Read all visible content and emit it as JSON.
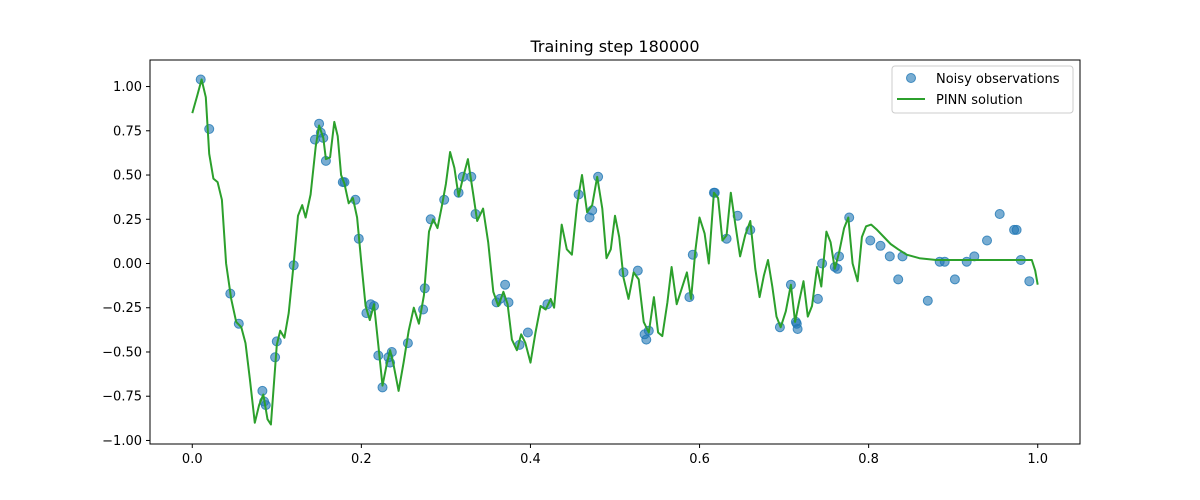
{
  "chart_data": {
    "type": "scatter",
    "title": "Training step 180000",
    "xlabel": "",
    "ylabel": "",
    "xlim": [
      -0.05,
      1.05
    ],
    "ylim": [
      -1.02,
      1.15
    ],
    "grid": false,
    "legend_position": "top-right",
    "x_ticks": [
      0.0,
      0.2,
      0.4,
      0.6,
      0.8,
      1.0
    ],
    "x_tick_labels": [
      "0.0",
      "0.2",
      "0.4",
      "0.6",
      "0.8",
      "1.0"
    ],
    "y_ticks": [
      -1.0,
      -0.75,
      -0.5,
      -0.25,
      0.0,
      0.25,
      0.5,
      0.75,
      1.0
    ],
    "y_tick_labels": [
      "−1.00",
      "−0.75",
      "−0.50",
      "−0.25",
      "0.00",
      "0.25",
      "0.50",
      "0.75",
      "1.00"
    ],
    "series": [
      {
        "name": "Noisy observations",
        "kind": "scatter",
        "color": "#1f77b4",
        "points": [
          [
            0.01,
            1.04
          ],
          [
            0.02,
            0.76
          ],
          [
            0.045,
            -0.17
          ],
          [
            0.055,
            -0.34
          ],
          [
            0.083,
            -0.72
          ],
          [
            0.085,
            -0.78
          ],
          [
            0.087,
            -0.8
          ],
          [
            0.098,
            -0.53
          ],
          [
            0.1,
            -0.44
          ],
          [
            0.12,
            -0.01
          ],
          [
            0.145,
            0.7
          ],
          [
            0.15,
            0.79
          ],
          [
            0.152,
            0.74
          ],
          [
            0.155,
            0.71
          ],
          [
            0.158,
            0.58
          ],
          [
            0.178,
            0.46
          ],
          [
            0.18,
            0.46
          ],
          [
            0.193,
            0.36
          ],
          [
            0.197,
            0.14
          ],
          [
            0.206,
            -0.28
          ],
          [
            0.211,
            -0.23
          ],
          [
            0.215,
            -0.24
          ],
          [
            0.22,
            -0.52
          ],
          [
            0.225,
            -0.7
          ],
          [
            0.232,
            -0.53
          ],
          [
            0.234,
            -0.56
          ],
          [
            0.236,
            -0.5
          ],
          [
            0.255,
            -0.45
          ],
          [
            0.273,
            -0.26
          ],
          [
            0.275,
            -0.14
          ],
          [
            0.282,
            0.25
          ],
          [
            0.298,
            0.36
          ],
          [
            0.315,
            0.4
          ],
          [
            0.32,
            0.49
          ],
          [
            0.33,
            0.49
          ],
          [
            0.335,
            0.28
          ],
          [
            0.36,
            -0.22
          ],
          [
            0.364,
            -0.2
          ],
          [
            0.37,
            -0.12
          ],
          [
            0.374,
            -0.22
          ],
          [
            0.387,
            -0.46
          ],
          [
            0.397,
            -0.39
          ],
          [
            0.42,
            -0.23
          ],
          [
            0.457,
            0.39
          ],
          [
            0.47,
            0.26
          ],
          [
            0.473,
            0.3
          ],
          [
            0.48,
            0.49
          ],
          [
            0.51,
            -0.05
          ],
          [
            0.527,
            -0.04
          ],
          [
            0.535,
            -0.4
          ],
          [
            0.537,
            -0.43
          ],
          [
            0.54,
            -0.38
          ],
          [
            0.588,
            -0.19
          ],
          [
            0.592,
            0.05
          ],
          [
            0.617,
            0.4
          ],
          [
            0.618,
            0.4
          ],
          [
            0.632,
            0.14
          ],
          [
            0.645,
            0.27
          ],
          [
            0.66,
            0.19
          ],
          [
            0.695,
            -0.36
          ],
          [
            0.708,
            -0.12
          ],
          [
            0.714,
            -0.33
          ],
          [
            0.715,
            -0.34
          ],
          [
            0.716,
            -0.37
          ],
          [
            0.74,
            -0.2
          ],
          [
            0.745,
            0.0
          ],
          [
            0.76,
            -0.02
          ],
          [
            0.763,
            -0.03
          ],
          [
            0.765,
            0.04
          ],
          [
            0.777,
            0.26
          ],
          [
            0.802,
            0.13
          ],
          [
            0.814,
            0.1
          ],
          [
            0.825,
            0.04
          ],
          [
            0.835,
            -0.09
          ],
          [
            0.84,
            0.04
          ],
          [
            0.87,
            -0.21
          ],
          [
            0.884,
            0.01
          ],
          [
            0.89,
            0.01
          ],
          [
            0.902,
            -0.09
          ],
          [
            0.916,
            0.01
          ],
          [
            0.925,
            0.04
          ],
          [
            0.94,
            0.13
          ],
          [
            0.955,
            0.28
          ],
          [
            0.972,
            0.19
          ],
          [
            0.975,
            0.19
          ],
          [
            0.98,
            0.02
          ],
          [
            0.99,
            -0.1
          ]
        ]
      },
      {
        "name": "PINN solution",
        "kind": "line",
        "color": "#2ca02c",
        "points": [
          [
            0.0,
            0.85
          ],
          [
            0.006,
            0.95
          ],
          [
            0.011,
            1.04
          ],
          [
            0.016,
            0.94
          ],
          [
            0.02,
            0.62
          ],
          [
            0.025,
            0.48
          ],
          [
            0.03,
            0.46
          ],
          [
            0.035,
            0.36
          ],
          [
            0.04,
            0.0
          ],
          [
            0.046,
            -0.2
          ],
          [
            0.052,
            -0.33
          ],
          [
            0.058,
            -0.36
          ],
          [
            0.063,
            -0.45
          ],
          [
            0.068,
            -0.65
          ],
          [
            0.074,
            -0.9
          ],
          [
            0.079,
            -0.8
          ],
          [
            0.084,
            -0.74
          ],
          [
            0.089,
            -0.88
          ],
          [
            0.093,
            -0.91
          ],
          [
            0.1,
            -0.46
          ],
          [
            0.104,
            -0.38
          ],
          [
            0.109,
            -0.42
          ],
          [
            0.114,
            -0.28
          ],
          [
            0.12,
            0.0
          ],
          [
            0.125,
            0.27
          ],
          [
            0.13,
            0.33
          ],
          [
            0.134,
            0.26
          ],
          [
            0.14,
            0.39
          ],
          [
            0.146,
            0.66
          ],
          [
            0.15,
            0.78
          ],
          [
            0.155,
            0.71
          ],
          [
            0.158,
            0.59
          ],
          [
            0.163,
            0.6
          ],
          [
            0.168,
            0.8
          ],
          [
            0.172,
            0.72
          ],
          [
            0.176,
            0.5
          ],
          [
            0.18,
            0.45
          ],
          [
            0.185,
            0.34
          ],
          [
            0.19,
            0.37
          ],
          [
            0.195,
            0.26
          ],
          [
            0.2,
            0.0
          ],
          [
            0.205,
            -0.24
          ],
          [
            0.21,
            -0.32
          ],
          [
            0.215,
            -0.23
          ],
          [
            0.22,
            -0.46
          ],
          [
            0.225,
            -0.69
          ],
          [
            0.23,
            -0.57
          ],
          [
            0.234,
            -0.49
          ],
          [
            0.238,
            -0.57
          ],
          [
            0.244,
            -0.72
          ],
          [
            0.25,
            -0.56
          ],
          [
            0.256,
            -0.38
          ],
          [
            0.262,
            -0.25
          ],
          [
            0.268,
            -0.34
          ],
          [
            0.274,
            -0.18
          ],
          [
            0.28,
            0.18
          ],
          [
            0.285,
            0.25
          ],
          [
            0.29,
            0.2
          ],
          [
            0.295,
            0.32
          ],
          [
            0.3,
            0.45
          ],
          [
            0.305,
            0.63
          ],
          [
            0.31,
            0.54
          ],
          [
            0.315,
            0.38
          ],
          [
            0.32,
            0.48
          ],
          [
            0.326,
            0.59
          ],
          [
            0.332,
            0.4
          ],
          [
            0.337,
            0.24
          ],
          [
            0.344,
            0.31
          ],
          [
            0.35,
            0.12
          ],
          [
            0.356,
            -0.16
          ],
          [
            0.362,
            -0.24
          ],
          [
            0.368,
            -0.16
          ],
          [
            0.373,
            -0.23
          ],
          [
            0.378,
            -0.43
          ],
          [
            0.384,
            -0.49
          ],
          [
            0.389,
            -0.4
          ],
          [
            0.394,
            -0.45
          ],
          [
            0.4,
            -0.56
          ],
          [
            0.406,
            -0.39
          ],
          [
            0.412,
            -0.24
          ],
          [
            0.418,
            -0.26
          ],
          [
            0.424,
            -0.2
          ],
          [
            0.428,
            -0.25
          ],
          [
            0.432,
            -0.04
          ],
          [
            0.437,
            0.22
          ],
          [
            0.443,
            0.08
          ],
          [
            0.449,
            0.05
          ],
          [
            0.455,
            0.33
          ],
          [
            0.461,
            0.5
          ],
          [
            0.467,
            0.29
          ],
          [
            0.473,
            0.33
          ],
          [
            0.479,
            0.49
          ],
          [
            0.485,
            0.31
          ],
          [
            0.49,
            0.03
          ],
          [
            0.495,
            0.08
          ],
          [
            0.5,
            0.27
          ],
          [
            0.505,
            0.15
          ],
          [
            0.51,
            -0.08
          ],
          [
            0.516,
            -0.2
          ],
          [
            0.522,
            -0.05
          ],
          [
            0.528,
            -0.09
          ],
          [
            0.534,
            -0.33
          ],
          [
            0.54,
            -0.39
          ],
          [
            0.546,
            -0.19
          ],
          [
            0.551,
            -0.39
          ],
          [
            0.556,
            -0.41
          ],
          [
            0.562,
            -0.22
          ],
          [
            0.567,
            -0.02
          ],
          [
            0.573,
            -0.23
          ],
          [
            0.579,
            -0.14
          ],
          [
            0.585,
            -0.05
          ],
          [
            0.59,
            -0.2
          ],
          [
            0.595,
            0.07
          ],
          [
            0.6,
            0.26
          ],
          [
            0.606,
            0.17
          ],
          [
            0.611,
            0.0
          ],
          [
            0.617,
            0.4
          ],
          [
            0.622,
            0.37
          ],
          [
            0.627,
            0.13
          ],
          [
            0.632,
            0.16
          ],
          [
            0.637,
            0.4
          ],
          [
            0.642,
            0.23
          ],
          [
            0.648,
            0.04
          ],
          [
            0.654,
            0.16
          ],
          [
            0.66,
            0.24
          ],
          [
            0.666,
            -0.03
          ],
          [
            0.671,
            -0.19
          ],
          [
            0.676,
            -0.07
          ],
          [
            0.681,
            0.02
          ],
          [
            0.686,
            -0.13
          ],
          [
            0.691,
            -0.3
          ],
          [
            0.696,
            -0.36
          ],
          [
            0.702,
            -0.27
          ],
          [
            0.708,
            -0.12
          ],
          [
            0.713,
            -0.33
          ],
          [
            0.718,
            -0.21
          ],
          [
            0.723,
            -0.1
          ],
          [
            0.728,
            -0.3
          ],
          [
            0.733,
            -0.24
          ],
          [
            0.739,
            -0.02
          ],
          [
            0.744,
            -0.13
          ],
          [
            0.75,
            0.18
          ],
          [
            0.755,
            0.12
          ],
          [
            0.76,
            -0.03
          ],
          [
            0.765,
            0.06
          ],
          [
            0.771,
            0.2
          ],
          [
            0.776,
            0.26
          ],
          [
            0.781,
            0.0
          ],
          [
            0.787,
            -0.1
          ],
          [
            0.792,
            0.15
          ],
          [
            0.797,
            0.21
          ],
          [
            0.803,
            0.22
          ],
          [
            0.81,
            0.19
          ],
          [
            0.818,
            0.15
          ],
          [
            0.826,
            0.11
          ],
          [
            0.835,
            0.08
          ],
          [
            0.845,
            0.05
          ],
          [
            0.86,
            0.03
          ],
          [
            0.88,
            0.02
          ],
          [
            0.9,
            0.02
          ],
          [
            0.94,
            0.02
          ],
          [
            0.98,
            0.02
          ],
          [
            0.993,
            0.02
          ],
          [
            0.997,
            -0.04
          ],
          [
            1.0,
            -0.12
          ]
        ]
      }
    ]
  }
}
